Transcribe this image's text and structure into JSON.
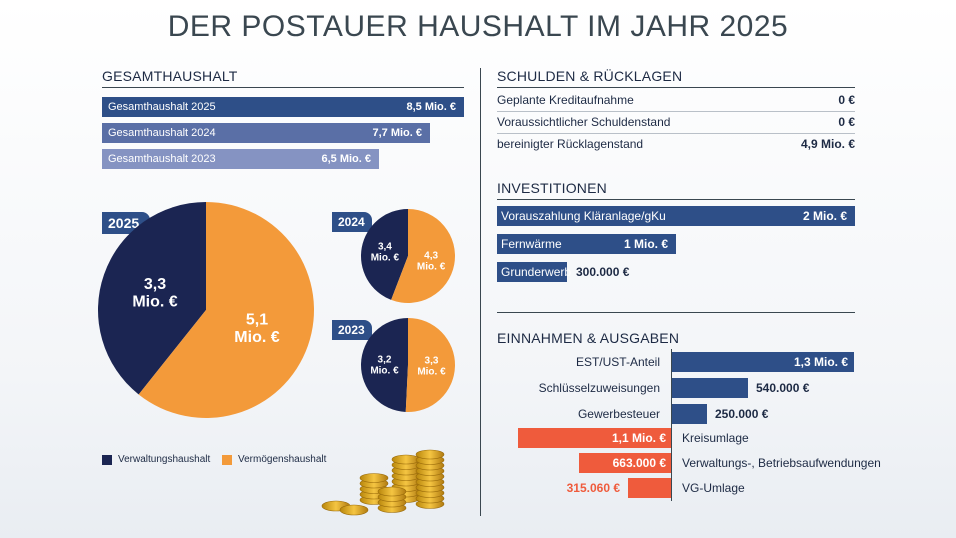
{
  "title": "DER POSTAUER HAUSHALT IM JAHR 2025",
  "gesamthaushalt": {
    "heading": "GESAMTHAUSHALT",
    "rows": [
      {
        "label": "Gesamthaushalt 2025",
        "value": "8,5 Mio. €",
        "num": 8.5,
        "color": "#2e4f88"
      },
      {
        "label": "Gesamthaushalt 2024",
        "value": "7,7 Mio. €",
        "num": 7.7,
        "color": "#5a6fa6"
      },
      {
        "label": "Gesamthaushalt 2023",
        "value": "6,5 Mio. €",
        "num": 6.5,
        "color": "#8593c2"
      }
    ]
  },
  "pies": [
    {
      "year": "2025",
      "a_label": "3,3",
      "a_unit": "Mio. €",
      "a": 3.3,
      "b_label": "5,1",
      "b_unit": "Mio. €",
      "b": 5.1
    },
    {
      "year": "2024",
      "a_label": "3,4",
      "a_unit": "Mio. €",
      "a": 3.4,
      "b_label": "4,3",
      "b_unit": "Mio. €",
      "b": 4.3
    },
    {
      "year": "2023",
      "a_label": "3,2",
      "a_unit": "Mio. €",
      "a": 3.2,
      "b_label": "3,3",
      "b_unit": "Mio. €",
      "b": 3.3
    }
  ],
  "legend": {
    "a": {
      "label": "Verwaltungshaushalt",
      "color": "#1b2552"
    },
    "b": {
      "label": "Vermögenshaushalt",
      "color": "#f39a3a"
    }
  },
  "schulden": {
    "heading": "SCHULDEN & RÜCKLAGEN",
    "rows": [
      {
        "label": "Geplante Kreditaufnahme",
        "value": "0 €"
      },
      {
        "label": "Voraussichtlicher Schuldenstand",
        "value": "0 €"
      },
      {
        "label": "bereinigter Rücklagenstand",
        "value": "4,9 Mio. €"
      }
    ]
  },
  "investitionen": {
    "heading": "INVESTITIONEN",
    "rows": [
      {
        "label": "Vorauszahlung Kläranlage/gKu",
        "value": "2 Mio. €",
        "num": 2000000
      },
      {
        "label": "Fernwärme",
        "value": "1 Mio. €",
        "num": 1000000
      },
      {
        "label": "Grunderwerb",
        "value": "300.000 €",
        "num": 300000
      }
    ]
  },
  "einnahmen": {
    "heading": "EINNAHMEN & AUSGABEN",
    "income": [
      {
        "label": "EST/UST-Anteil",
        "value": "1,3 Mio. €",
        "num": 1300000
      },
      {
        "label": "Schlüsselzuweisungen",
        "value": "540.000 €",
        "num": 540000
      },
      {
        "label": "Gewerbesteuer",
        "value": "250.000 €",
        "num": 250000
      }
    ],
    "expense": [
      {
        "label": "Kreisumlage",
        "value": "1,1 Mio. €",
        "num": 1100000
      },
      {
        "label": "Verwaltungs-, Betriebsaufwendungen",
        "value": "663.000 €",
        "num": 663000
      },
      {
        "label": "VG-Umlage",
        "value": "315.060 €",
        "num": 315060
      }
    ],
    "income_color": "#2e4f88",
    "expense_color": "#ef5b3c"
  },
  "chart_data": [
    {
      "type": "bar",
      "title": "GESAMTHAUSHALT",
      "categories": [
        "Gesamthaushalt 2025",
        "Gesamthaushalt 2024",
        "Gesamthaushalt 2023"
      ],
      "values": [
        8.5,
        7.7,
        6.5
      ],
      "unit": "Mio. €"
    },
    {
      "type": "pie",
      "title": "2025",
      "categories": [
        "Verwaltungshaushalt",
        "Vermögenshaushalt"
      ],
      "values": [
        3.3,
        5.1
      ],
      "unit": "Mio. €"
    },
    {
      "type": "pie",
      "title": "2024",
      "categories": [
        "Verwaltungshaushalt",
        "Vermögenshaushalt"
      ],
      "values": [
        3.4,
        4.3
      ],
      "unit": "Mio. €"
    },
    {
      "type": "pie",
      "title": "2023",
      "categories": [
        "Verwaltungshaushalt",
        "Vermögenshaushalt"
      ],
      "values": [
        3.2,
        3.3
      ],
      "unit": "Mio. €"
    },
    {
      "type": "table",
      "title": "SCHULDEN & RÜCKLAGEN",
      "categories": [
        "Geplante Kreditaufnahme",
        "Voraussichtlicher Schuldenstand",
        "bereinigter Rücklagenstand"
      ],
      "values": [
        "0 €",
        "0 €",
        "4,9 Mio. €"
      ]
    },
    {
      "type": "bar",
      "title": "INVESTITIONEN",
      "categories": [
        "Vorauszahlung Kläranlage/gKu",
        "Fernwärme",
        "Grunderwerb"
      ],
      "values": [
        2000000,
        1000000,
        300000
      ],
      "unit": "€"
    },
    {
      "type": "bar",
      "title": "EINNAHMEN & AUSGABEN",
      "categories": [
        "EST/UST-Anteil",
        "Schlüsselzuweisungen",
        "Gewerbesteuer",
        "Kreisumlage",
        "Verwaltungs-, Betriebsaufwendungen",
        "VG-Umlage"
      ],
      "values": [
        1300000,
        540000,
        250000,
        -1100000,
        -663000,
        -315060
      ],
      "unit": "€"
    }
  ]
}
